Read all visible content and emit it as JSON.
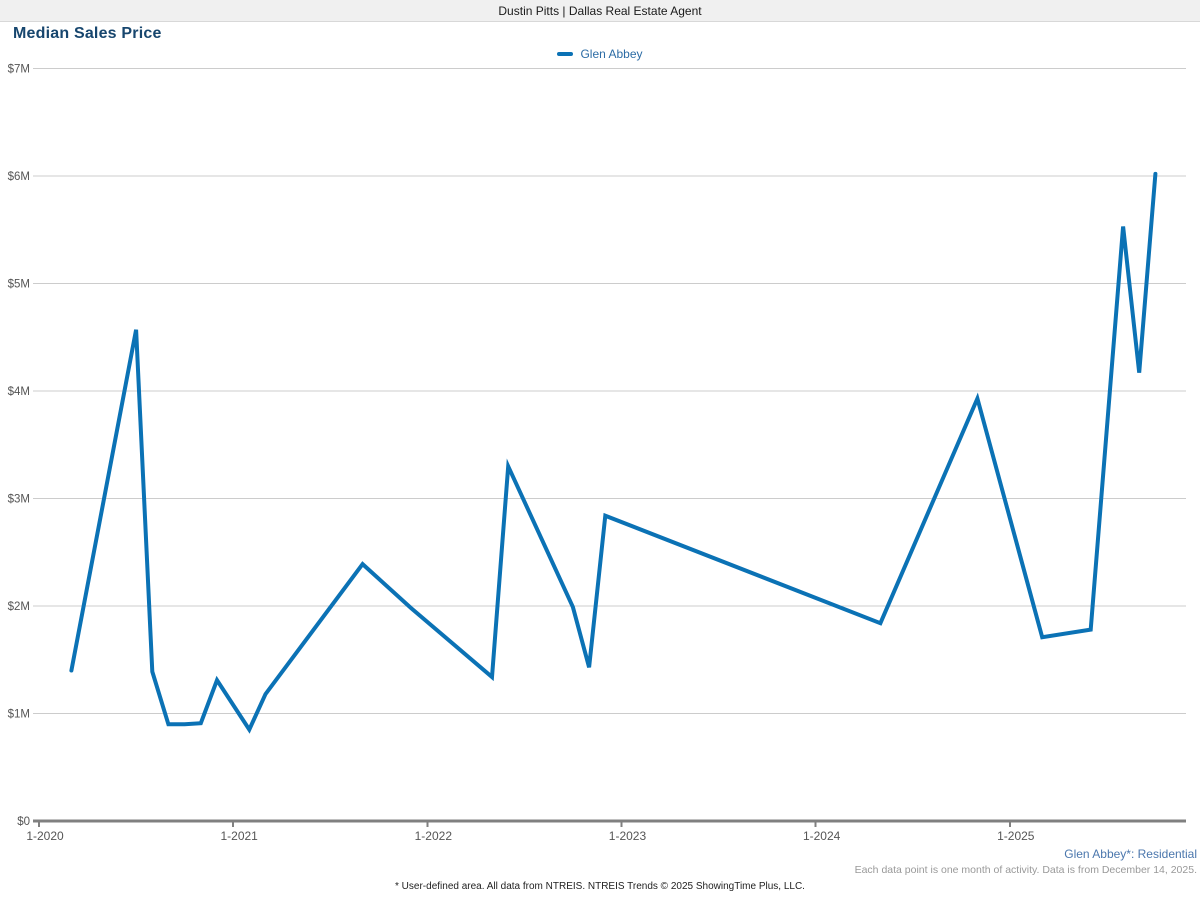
{
  "header": {
    "title": "Dustin Pitts | Dallas Real Estate Agent"
  },
  "page": {
    "title": "Median Sales Price"
  },
  "legend": {
    "label": "Glen Abbey"
  },
  "chart_data": {
    "type": "line",
    "title": "Median Sales Price",
    "unit": "USD millions",
    "ylim": [
      0,
      7
    ],
    "grid": true,
    "legend_position": "top-center",
    "y_tick_labels": [
      "$0",
      "$1M",
      "$2M",
      "$3M",
      "$4M",
      "$5M",
      "$6M",
      "$7M"
    ],
    "x_tick_labels": [
      "1-2020",
      "1-2021",
      "1-2022",
      "1-2023",
      "1-2024",
      "1-2025"
    ],
    "series": [
      {
        "name": "Glen Abbey",
        "points": [
          {
            "month": "2020-03",
            "value": 1.4
          },
          {
            "month": "2020-07",
            "value": 4.57
          },
          {
            "month": "2020-08",
            "value": 1.39
          },
          {
            "month": "2020-09",
            "value": 0.9
          },
          {
            "month": "2020-10",
            "value": 0.9
          },
          {
            "month": "2020-11",
            "value": 0.91
          },
          {
            "month": "2020-12",
            "value": 1.31
          },
          {
            "month": "2021-02",
            "value": 0.85
          },
          {
            "month": "2021-03",
            "value": 1.18
          },
          {
            "month": "2021-09",
            "value": 2.39
          },
          {
            "month": "2021-12",
            "value": 1.98
          },
          {
            "month": "2022-05",
            "value": 1.34
          },
          {
            "month": "2022-06",
            "value": 3.3
          },
          {
            "month": "2022-10",
            "value": 1.99
          },
          {
            "month": "2022-11",
            "value": 1.43
          },
          {
            "month": "2022-12",
            "value": 2.84
          },
          {
            "month": "2024-05",
            "value": 1.84
          },
          {
            "month": "2024-11",
            "value": 3.93
          },
          {
            "month": "2025-03",
            "value": 1.71
          },
          {
            "month": "2025-06",
            "value": 1.78
          },
          {
            "month": "2025-08",
            "value": 5.53
          },
          {
            "month": "2025-09",
            "value": 4.17
          },
          {
            "month": "2025-10",
            "value": 6.02
          }
        ]
      }
    ]
  },
  "annotations": {
    "series_note": "Glen Abbey*: Residential",
    "data_note": "Each data point is one month of activity. Data is from December 14, 2025.",
    "footer": "* User-defined area. All data from NTREIS. NTREIS Trends © 2025 ShowingTime Plus, LLC."
  },
  "colors": {
    "line": "#0b72b5",
    "title": "#17466e",
    "legend_text": "#2c6ca5",
    "grid": "#cccccc",
    "axis": "#808080",
    "tick_text": "#555555",
    "note_blue": "#4b77ad",
    "note_gray": "#999999"
  }
}
